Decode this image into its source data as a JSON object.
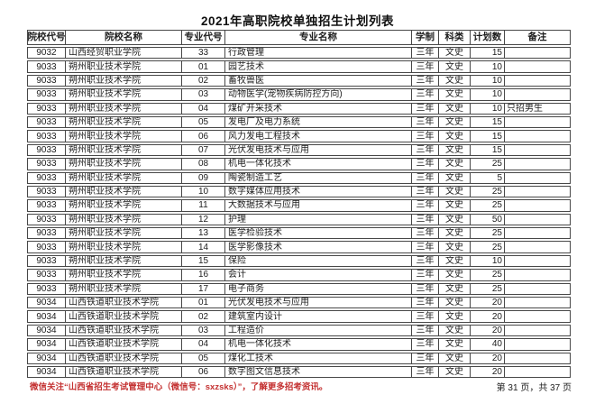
{
  "title": "2021年高职院校单独招生计划列表",
  "table": {
    "headers": [
      "院校代号",
      "院校名称",
      "专业代号",
      "专业名称",
      "学制",
      "科类",
      "计划数",
      "备注"
    ],
    "rows": [
      [
        "9032",
        "山西经贸职业学院",
        "33",
        "行政管理",
        "三年",
        "文史",
        "15",
        ""
      ],
      [
        "9033",
        "朔州职业技术学院",
        "01",
        "园艺技术",
        "三年",
        "文史",
        "10",
        ""
      ],
      [
        "9033",
        "朔州职业技术学院",
        "02",
        "畜牧兽医",
        "三年",
        "文史",
        "10",
        ""
      ],
      [
        "9033",
        "朔州职业技术学院",
        "03",
        "动物医学(宠物疾病防控方向)",
        "三年",
        "文史",
        "10",
        ""
      ],
      [
        "9033",
        "朔州职业技术学院",
        "04",
        "煤矿开采技术",
        "三年",
        "文史",
        "10",
        "只招男生"
      ],
      [
        "9033",
        "朔州职业技术学院",
        "05",
        "发电厂及电力系统",
        "三年",
        "文史",
        "15",
        ""
      ],
      [
        "9033",
        "朔州职业技术学院",
        "06",
        "风力发电工程技术",
        "三年",
        "文史",
        "15",
        ""
      ],
      [
        "9033",
        "朔州职业技术学院",
        "07",
        "光伏发电技术与应用",
        "三年",
        "文史",
        "15",
        ""
      ],
      [
        "9033",
        "朔州职业技术学院",
        "08",
        "机电一体化技术",
        "三年",
        "文史",
        "25",
        ""
      ],
      [
        "9033",
        "朔州职业技术学院",
        "09",
        "陶瓷制造工艺",
        "三年",
        "文史",
        "5",
        ""
      ],
      [
        "9033",
        "朔州职业技术学院",
        "10",
        "数字媒体应用技术",
        "三年",
        "文史",
        "25",
        ""
      ],
      [
        "9033",
        "朔州职业技术学院",
        "11",
        "大数据技术与应用",
        "三年",
        "文史",
        "25",
        ""
      ],
      [
        "9033",
        "朔州职业技术学院",
        "12",
        "护理",
        "三年",
        "文史",
        "50",
        ""
      ],
      [
        "9033",
        "朔州职业技术学院",
        "13",
        "医学检验技术",
        "三年",
        "文史",
        "25",
        ""
      ],
      [
        "9033",
        "朔州职业技术学院",
        "14",
        "医学影像技术",
        "三年",
        "文史",
        "25",
        ""
      ],
      [
        "9033",
        "朔州职业技术学院",
        "15",
        "保险",
        "三年",
        "文史",
        "10",
        ""
      ],
      [
        "9033",
        "朔州职业技术学院",
        "16",
        "会计",
        "三年",
        "文史",
        "25",
        ""
      ],
      [
        "9033",
        "朔州职业技术学院",
        "17",
        "电子商务",
        "三年",
        "文史",
        "25",
        ""
      ],
      [
        "9034",
        "山西铁道职业技术学院",
        "01",
        "光伏发电技术与应用",
        "三年",
        "文史",
        "20",
        ""
      ],
      [
        "9034",
        "山西铁道职业技术学院",
        "02",
        "建筑室内设计",
        "三年",
        "文史",
        "20",
        ""
      ],
      [
        "9034",
        "山西铁道职业技术学院",
        "03",
        "工程造价",
        "三年",
        "文史",
        "20",
        ""
      ],
      [
        "9034",
        "山西铁道职业技术学院",
        "04",
        "机电一体化技术",
        "三年",
        "文史",
        "40",
        ""
      ],
      [
        "9034",
        "山西铁道职业技术学院",
        "05",
        "煤化工技术",
        "三年",
        "文史",
        "20",
        ""
      ],
      [
        "9034",
        "山西铁道职业技术学院",
        "06",
        "数字图文信息技术",
        "三年",
        "文史",
        "20",
        ""
      ]
    ]
  },
  "footer": {
    "notice": "微信关注“山西省招生考试管理中心（微信号：sxzsks）”，了解更多招考资讯。",
    "page_info": "第 31 页，共 37 页"
  },
  "colors": {
    "notice_red": "#c43131",
    "border_gray": "#484848"
  }
}
